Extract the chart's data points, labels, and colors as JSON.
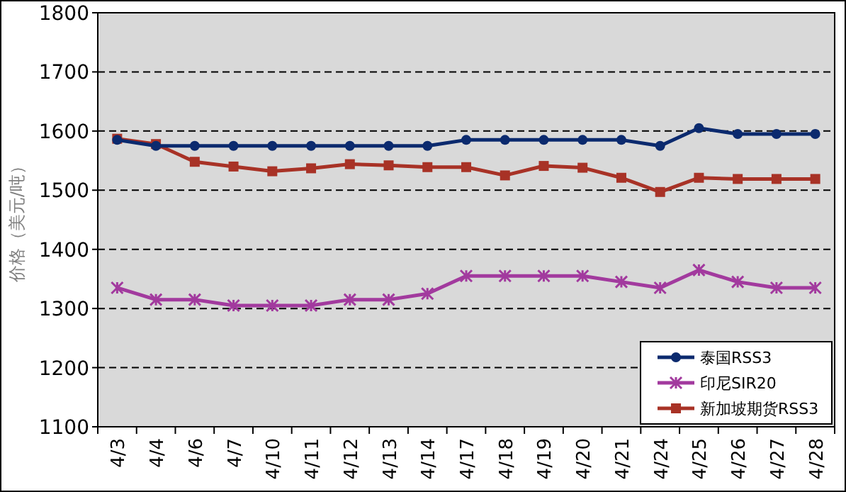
{
  "chart_data": {
    "type": "line",
    "ylabel": "价格（美元/吨）",
    "categories": [
      "4/3",
      "4/4",
      "4/6",
      "4/7",
      "4/10",
      "4/11",
      "4/12",
      "4/13",
      "4/14",
      "4/17",
      "4/18",
      "4/19",
      "4/20",
      "4/21",
      "4/24",
      "4/25",
      "4/26",
      "4/27",
      "4/28"
    ],
    "series": [
      {
        "name": "泰国RSS3",
        "color": "#0b2a6e",
        "marker": "circle",
        "values": [
          1585,
          1575,
          1575,
          1575,
          1575,
          1575,
          1575,
          1575,
          1575,
          1585,
          1585,
          1585,
          1585,
          1585,
          1575,
          1605,
          1595,
          1595,
          1595
        ]
      },
      {
        "name": "印尼SIR20",
        "color": "#a23a9e",
        "marker": "cross",
        "values": [
          1335,
          1315,
          1315,
          1305,
          1305,
          1305,
          1315,
          1315,
          1325,
          1355,
          1355,
          1355,
          1355,
          1345,
          1335,
          1365,
          1345,
          1335,
          1335
        ]
      },
      {
        "name": "新加坡期货RSS3",
        "color": "#a83226",
        "marker": "square",
        "values": [
          1587,
          1578,
          1548,
          1540,
          1532,
          1537,
          1544,
          1542,
          1539,
          1539,
          1525,
          1541,
          1538,
          1521,
          1497,
          1521,
          1519,
          1519,
          1519
        ]
      }
    ],
    "ylim": [
      1100,
      1800
    ],
    "yticks": [
      1100,
      1200,
      1300,
      1400,
      1500,
      1600,
      1700,
      1800
    ],
    "grid": "y",
    "line_style": "solid",
    "legend": "bottom right"
  }
}
